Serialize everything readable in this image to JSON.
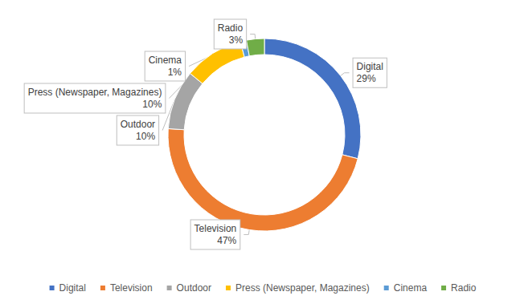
{
  "chart_data": {
    "type": "pie",
    "categories": [
      "Digital",
      "Television",
      "Outdoor",
      "Press (Newspaper, Magazines)",
      "Cinema",
      "Radio"
    ],
    "values": [
      29,
      47,
      10,
      10,
      1,
      3
    ],
    "value_labels": [
      "29%",
      "47%",
      "10%",
      "10%",
      "1%",
      "3%"
    ],
    "colors": [
      "#4472c4",
      "#ed7d31",
      "#a5a5a5",
      "#ffc000",
      "#5b9bd5",
      "#70ad47"
    ],
    "data_labels": true,
    "legend": "bottom"
  }
}
